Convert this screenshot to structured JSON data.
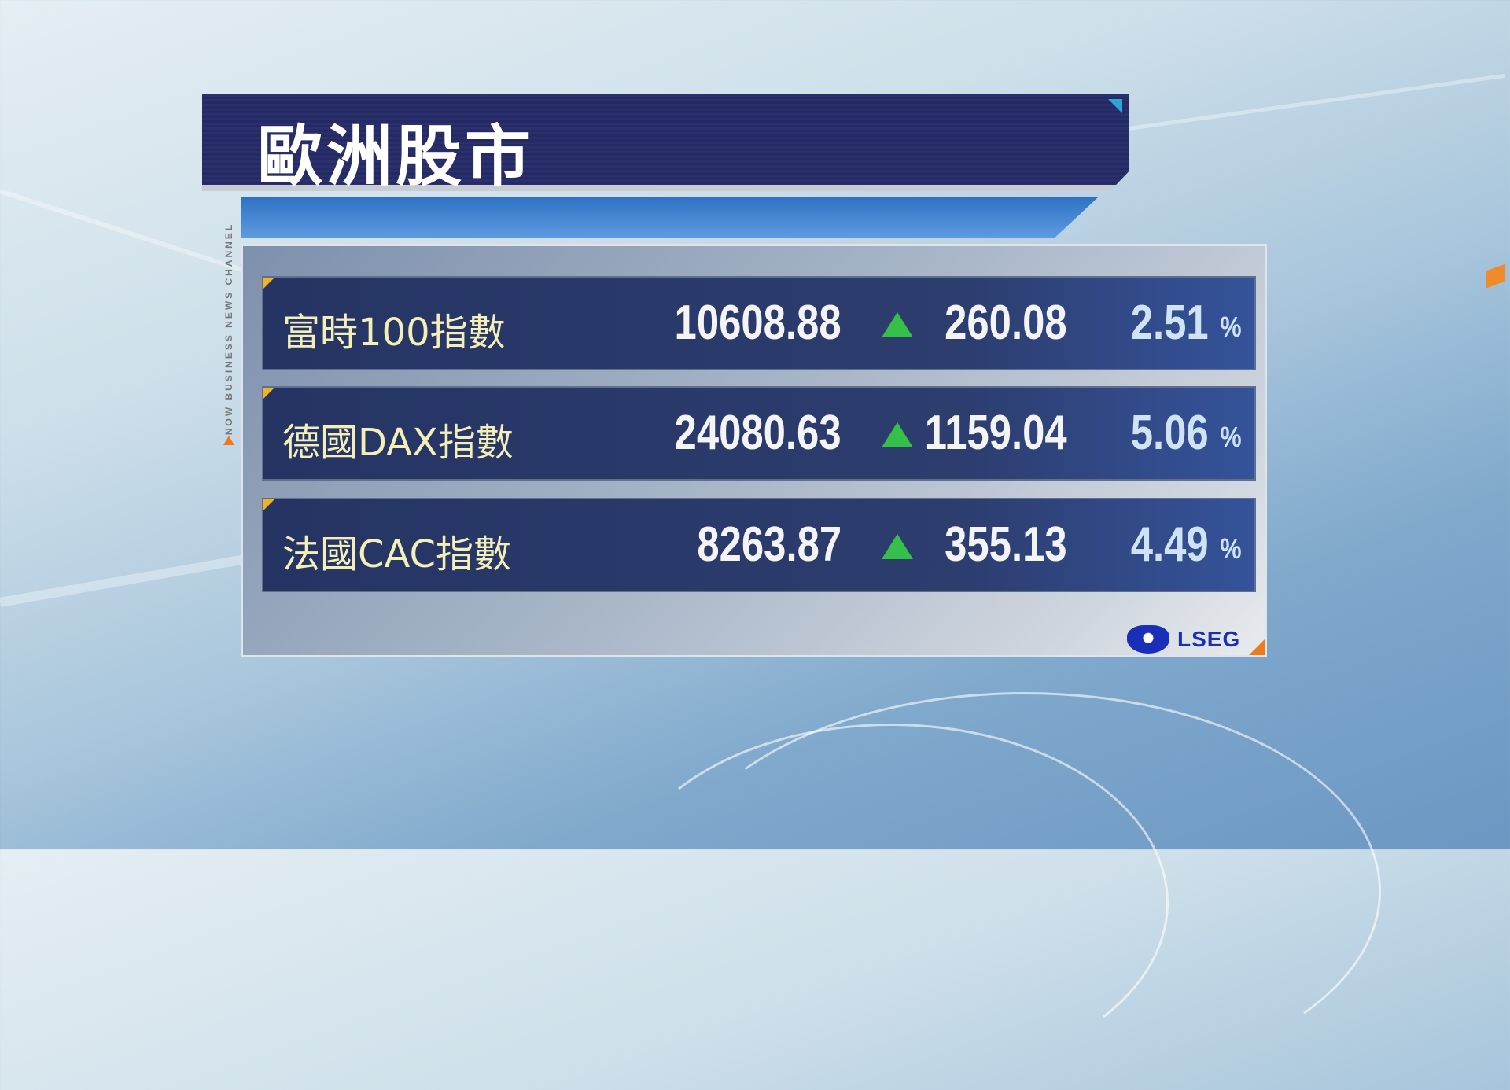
{
  "title": "歐洲股市",
  "channel_label": "NOW BUSINESS NEWS CHANNEL",
  "source_logo": "LSEG",
  "colors": {
    "up_arrow": "#35c04a",
    "name_text": "#f4eeb8",
    "title_bg": "#2a2f6e",
    "accent_orange": "#ee7a1e",
    "accent_yellow": "#f0b323"
  },
  "rows": [
    {
      "name": "富時100指數",
      "value": "10608.88",
      "direction": "up",
      "change": "260.08",
      "pct": "2.51",
      "pct_sign": "%"
    },
    {
      "name": "德國DAX指數",
      "value": "24080.63",
      "direction": "up",
      "change": "1159.04",
      "pct": "5.06",
      "pct_sign": "%"
    },
    {
      "name": "法國CAC指數",
      "value": "8263.87",
      "direction": "up",
      "change": "355.13",
      "pct": "4.49",
      "pct_sign": "%"
    }
  ]
}
